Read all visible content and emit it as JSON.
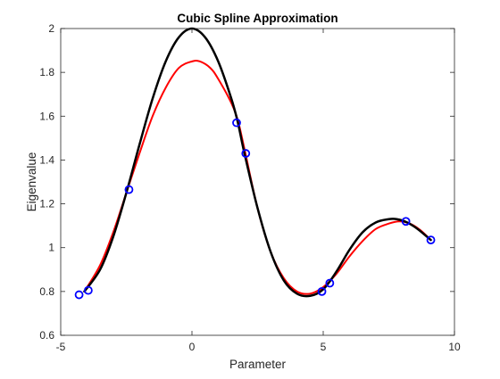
{
  "chart_data": {
    "type": "line",
    "title": "Cubic Spline Approximation",
    "xlabel": "Parameter",
    "ylabel": "Eigenvalue",
    "xlim": [
      -5,
      10
    ],
    "ylim": [
      0.6,
      2.0
    ],
    "xticks": [
      -5,
      0,
      5,
      10
    ],
    "yticks": [
      0.6,
      0.8,
      1.0,
      1.2,
      1.4,
      1.6,
      1.8,
      2.0
    ],
    "xtick_labels": [
      "-5",
      "0",
      "5",
      "10"
    ],
    "ytick_labels": [
      "0.6",
      "0.8",
      "1",
      "1.2",
      "1.4",
      "1.6",
      "1.8",
      "2"
    ],
    "grid": false,
    "legend": "none",
    "series": [
      {
        "kind": "line",
        "color": "#000000",
        "x": [
          -4.1,
          -3.5,
          -3.0,
          -2.5,
          -2.0,
          -1.5,
          -1.0,
          -0.5,
          0.0,
          0.5,
          1.0,
          1.5,
          1.75,
          2.0,
          2.5,
          3.0,
          3.5,
          4.0,
          4.5,
          5.0,
          5.5,
          6.0,
          6.5,
          7.0,
          7.5,
          7.8,
          8.2,
          8.6,
          9.1
        ],
        "y": [
          0.8,
          0.9,
          1.05,
          1.25,
          1.47,
          1.68,
          1.85,
          1.96,
          2.0,
          1.96,
          1.85,
          1.68,
          1.57,
          1.43,
          1.18,
          0.98,
          0.85,
          0.79,
          0.78,
          0.81,
          0.89,
          0.99,
          1.07,
          1.115,
          1.13,
          1.13,
          1.115,
          1.085,
          1.035
        ]
      },
      {
        "kind": "line",
        "color": "#ff0000",
        "x": [
          -4.1,
          -3.5,
          -3.0,
          -2.5,
          -2.0,
          -1.5,
          -1.0,
          -0.5,
          0.0,
          0.3,
          0.7,
          1.0,
          1.5,
          1.75,
          2.0,
          2.5,
          3.0,
          3.5,
          4.0,
          4.5,
          5.0,
          5.5,
          6.0,
          6.5,
          7.0,
          7.5,
          7.9,
          8.3,
          8.7,
          9.1
        ],
        "y": [
          0.8,
          0.92,
          1.07,
          1.25,
          1.43,
          1.6,
          1.73,
          1.82,
          1.85,
          1.85,
          1.82,
          1.77,
          1.66,
          1.58,
          1.45,
          1.18,
          0.98,
          0.86,
          0.8,
          0.79,
          0.82,
          0.88,
          0.96,
          1.03,
          1.085,
          1.11,
          1.12,
          1.11,
          1.08,
          1.035
        ]
      },
      {
        "kind": "markers",
        "marker": "circle",
        "color": "#0000ff",
        "x": [
          -4.3,
          -3.95,
          -2.4,
          1.7,
          2.05,
          4.95,
          5.25,
          8.15,
          9.1
        ],
        "y": [
          0.785,
          0.805,
          1.265,
          1.57,
          1.43,
          0.8,
          0.838,
          1.12,
          1.035
        ]
      }
    ]
  }
}
